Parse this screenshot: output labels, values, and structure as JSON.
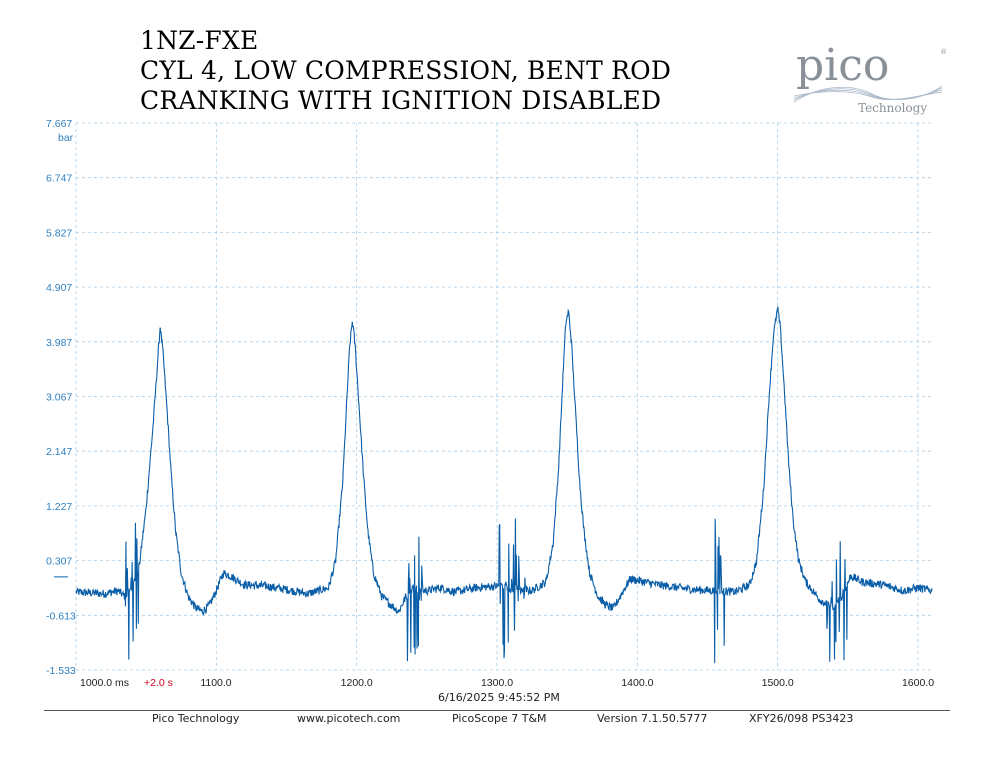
{
  "title_lines": [
    "1NZ-FXE",
    "CYL 4, LOW COMPRESSION, BENT ROD",
    "CRANKING WITH IGNITION DISABLED"
  ],
  "logo": {
    "wordmark": "pico",
    "registered": "®",
    "tagline": "Technology",
    "color": "#8a9097"
  },
  "timestamp": "6/16/2025 9:45:52 PM",
  "footer": {
    "company": "Pico Technology",
    "website": "www.picotech.com",
    "product": "PicoScope 7 T&M",
    "version": "Version 7.1.50.5777",
    "device": "XFY26/098 PS3423"
  },
  "colors": {
    "trace": "#0a5ea8",
    "axis_text": "#2f7fbf",
    "grid": "#a8cde8",
    "x_axis_text": "#222222",
    "offset_text": "#d0021b"
  },
  "chart_data": {
    "type": "line",
    "title": "",
    "xlabel": "",
    "ylabel": "bar",
    "x_unit": "ms",
    "ylim": [
      -1.533,
      7.667
    ],
    "xlim": [
      1000.0,
      1610.0
    ],
    "y_ticks": [
      "7.667",
      "6.747",
      "5.827",
      "4.907",
      "3.987",
      "3.067",
      "2.147",
      "1.227",
      "0.307",
      "-0.613",
      "-1.533"
    ],
    "x_ticks": [
      {
        "value": 1000.0,
        "label": "1000.0 ms"
      },
      {
        "value": 1100.0,
        "label": "1100.0"
      },
      {
        "value": 1200.0,
        "label": "1200.0"
      },
      {
        "value": 1300.0,
        "label": "1300.0"
      },
      {
        "value": 1400.0,
        "label": "1400.0"
      },
      {
        "value": 1500.0,
        "label": "1500.0"
      },
      {
        "value": 1600.0,
        "label": "1600.0"
      }
    ],
    "x_offset_label": "+2.0 s",
    "grid": true,
    "series": [
      {
        "values_description_points": [
          [
            1000,
            -0.22
          ],
          [
            1020,
            -0.25
          ],
          [
            1030,
            -0.2
          ],
          [
            1035,
            -0.3
          ],
          [
            1040,
            -0.15
          ],
          [
            1045,
            0.2
          ],
          [
            1050,
            1.2
          ],
          [
            1055,
            2.6
          ],
          [
            1058,
            3.6
          ],
          [
            1060,
            4.25
          ],
          [
            1062,
            3.8
          ],
          [
            1065,
            2.8
          ],
          [
            1068,
            1.7
          ],
          [
            1071,
            0.8
          ],
          [
            1075,
            0.1
          ],
          [
            1080,
            -0.3
          ],
          [
            1085,
            -0.48
          ],
          [
            1090,
            -0.55
          ],
          [
            1095,
            -0.45
          ],
          [
            1100,
            -0.2
          ],
          [
            1105,
            0.1
          ],
          [
            1110,
            0.05
          ],
          [
            1120,
            -0.1
          ],
          [
            1135,
            -0.12
          ],
          [
            1150,
            -0.18
          ],
          [
            1165,
            -0.25
          ],
          [
            1180,
            -0.15
          ],
          [
            1185,
            0.3
          ],
          [
            1190,
            1.6
          ],
          [
            1193,
            3.0
          ],
          [
            1195,
            3.9
          ],
          [
            1197,
            4.35
          ],
          [
            1199,
            3.9
          ],
          [
            1202,
            2.8
          ],
          [
            1205,
            1.7
          ],
          [
            1208,
            0.8
          ],
          [
            1212,
            0.1
          ],
          [
            1218,
            -0.3
          ],
          [
            1225,
            -0.45
          ],
          [
            1230,
            -0.55
          ],
          [
            1235,
            -0.3
          ],
          [
            1240,
            -0.15
          ],
          [
            1250,
            -0.2
          ],
          [
            1260,
            -0.15
          ],
          [
            1270,
            -0.22
          ],
          [
            1285,
            -0.15
          ],
          [
            1300,
            -0.12
          ],
          [
            1315,
            -0.18
          ],
          [
            1325,
            -0.2
          ],
          [
            1335,
            -0.05
          ],
          [
            1340,
            0.6
          ],
          [
            1344,
            1.9
          ],
          [
            1347,
            3.4
          ],
          [
            1349,
            4.3
          ],
          [
            1351,
            4.5
          ],
          [
            1353,
            4.0
          ],
          [
            1356,
            2.8
          ],
          [
            1359,
            1.6
          ],
          [
            1362,
            0.8
          ],
          [
            1366,
            0.1
          ],
          [
            1372,
            -0.3
          ],
          [
            1378,
            -0.45
          ],
          [
            1383,
            -0.5
          ],
          [
            1390,
            -0.2
          ],
          [
            1395,
            0.0
          ],
          [
            1405,
            -0.05
          ],
          [
            1415,
            -0.1
          ],
          [
            1430,
            -0.15
          ],
          [
            1440,
            -0.18
          ],
          [
            1455,
            -0.2
          ],
          [
            1470,
            -0.22
          ],
          [
            1480,
            -0.1
          ],
          [
            1485,
            0.3
          ],
          [
            1490,
            1.5
          ],
          [
            1494,
            3.1
          ],
          [
            1497,
            4.1
          ],
          [
            1500,
            4.55
          ],
          [
            1502,
            4.2
          ],
          [
            1505,
            3.1
          ],
          [
            1508,
            1.9
          ],
          [
            1511,
            1.0
          ],
          [
            1515,
            0.3
          ],
          [
            1520,
            -0.05
          ],
          [
            1525,
            -0.2
          ],
          [
            1530,
            -0.35
          ],
          [
            1540,
            -0.5
          ],
          [
            1548,
            -0.2
          ],
          [
            1552,
            0.05
          ],
          [
            1560,
            -0.05
          ],
          [
            1575,
            -0.1
          ],
          [
            1590,
            -0.2
          ],
          [
            1600,
            -0.15
          ],
          [
            1610,
            -0.2
          ]
        ]
      }
    ]
  }
}
